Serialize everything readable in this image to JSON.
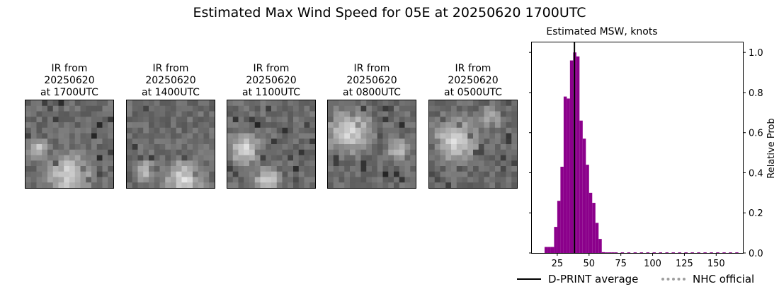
{
  "figure": {
    "title": "Estimated Max Wind Speed for 05E at 20250620 1700UTC"
  },
  "ir_panels": [
    {
      "line1": "IR from",
      "line2": "20250620",
      "line3": "at 1700UTC",
      "bright_area": "lower-center"
    },
    {
      "line1": "IR from",
      "line2": "20250620",
      "line3": "at 1400UTC",
      "bright_area": "lower-right"
    },
    {
      "line1": "IR from",
      "line2": "20250620",
      "line3": "at 1100UTC",
      "bright_area": "left"
    },
    {
      "line1": "IR from",
      "line2": "20250620",
      "line3": "at 0800UTC",
      "bright_area": "upper-left"
    },
    {
      "line1": "IR from",
      "line2": "20250620",
      "line3": "at 0500UTC",
      "bright_area": "center-left"
    }
  ],
  "chart_data": {
    "type": "bar",
    "title": "Estimated MSW, knots",
    "xlabel": "",
    "ylabel": "Relative Prob",
    "xlim": [
      5,
      171
    ],
    "ylim": [
      0,
      1.05
    ],
    "x_ticks": [
      25,
      50,
      75,
      100,
      125,
      150
    ],
    "y_ticks": [
      0.0,
      0.2,
      0.4,
      0.6,
      0.8,
      1.0
    ],
    "y_axis_side": "right",
    "bar_color": "#8b008b",
    "bin_width": 2.5,
    "bins": [
      {
        "x": 15.0,
        "value": 0.03
      },
      {
        "x": 17.5,
        "value": 0.03
      },
      {
        "x": 20.0,
        "value": 0.03
      },
      {
        "x": 22.5,
        "value": 0.13
      },
      {
        "x": 25.0,
        "value": 0.26
      },
      {
        "x": 27.5,
        "value": 0.43
      },
      {
        "x": 30.0,
        "value": 0.78
      },
      {
        "x": 32.5,
        "value": 0.77
      },
      {
        "x": 35.0,
        "value": 0.96
      },
      {
        "x": 37.5,
        "value": 1.0
      },
      {
        "x": 40.0,
        "value": 0.98
      },
      {
        "x": 42.5,
        "value": 0.66
      },
      {
        "x": 45.0,
        "value": 0.57
      },
      {
        "x": 47.5,
        "value": 0.44
      },
      {
        "x": 50.0,
        "value": 0.3
      },
      {
        "x": 52.5,
        "value": 0.25
      },
      {
        "x": 55.0,
        "value": 0.15
      },
      {
        "x": 57.5,
        "value": 0.07
      },
      {
        "x": 60.0,
        "value": 0.004
      },
      {
        "x": 62.5,
        "value": 0.003
      },
      {
        "x": 65.0,
        "value": 0.003
      },
      {
        "x": 67.5,
        "value": 0.003
      },
      {
        "x": 70.0,
        "value": 0.003
      },
      {
        "x": 75.0,
        "value": 0.003
      },
      {
        "x": 80.0,
        "value": 0.003
      },
      {
        "x": 85.0,
        "value": 0.003
      },
      {
        "x": 90.0,
        "value": 0.003
      },
      {
        "x": 95.0,
        "value": 0.003
      },
      {
        "x": 100.0,
        "value": 0.003
      },
      {
        "x": 105.0,
        "value": 0.003
      },
      {
        "x": 110.0,
        "value": 0.003
      },
      {
        "x": 115.0,
        "value": 0.003
      },
      {
        "x": 120.0,
        "value": 0.003
      },
      {
        "x": 125.0,
        "value": 0.003
      },
      {
        "x": 130.0,
        "value": 0.003
      },
      {
        "x": 135.0,
        "value": 0.003
      },
      {
        "x": 140.0,
        "value": 0.003
      },
      {
        "x": 145.0,
        "value": 0.003
      },
      {
        "x": 150.0,
        "value": 0.003
      },
      {
        "x": 155.0,
        "value": 0.003
      },
      {
        "x": 160.0,
        "value": 0.003
      },
      {
        "x": 165.0,
        "value": 0.003
      }
    ],
    "dprint_average": 38.5,
    "legend": {
      "placement": "bottom",
      "entries": [
        {
          "label": "D-PRINT average",
          "style": "solid",
          "color": "#000000"
        },
        {
          "label": "NHC official",
          "style": "dotted",
          "color": "#9e9e9e"
        }
      ]
    }
  }
}
